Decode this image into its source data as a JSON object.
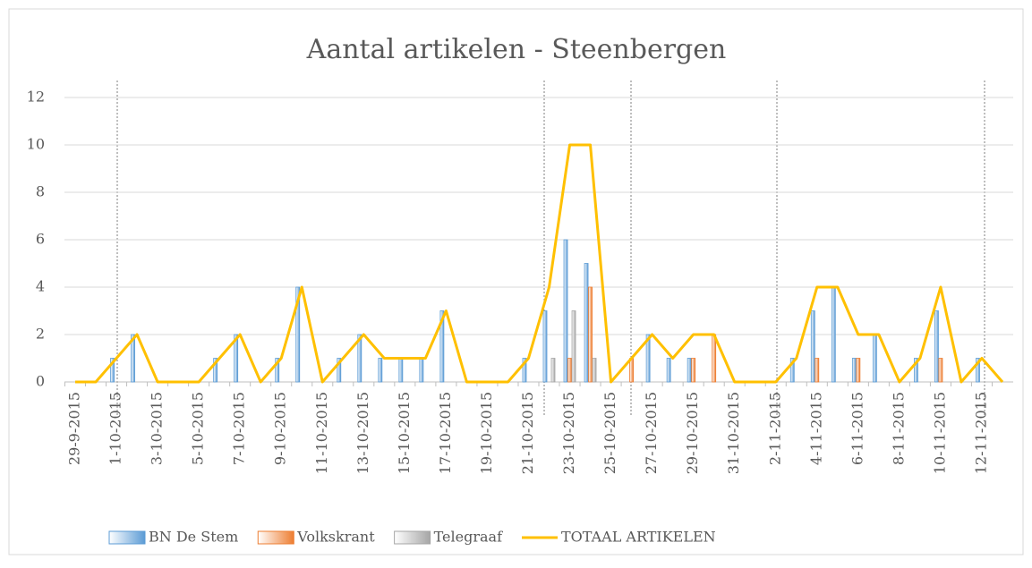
{
  "chart_data": {
    "type": "bar_line",
    "title": "Aantal artikelen - Steenbergen",
    "categories": [
      "29-9-2015",
      null,
      "1-10-2015",
      null,
      "3-10-2015",
      null,
      "5-10-2015",
      null,
      "7-10-2015",
      null,
      "9-10-2015",
      null,
      "11-10-2015",
      null,
      "13-10-2015",
      null,
      "15-10-2015",
      null,
      "17-10-2015",
      null,
      "19-10-2015",
      null,
      "21-10-2015",
      null,
      "23-10-2015",
      null,
      "25-10-2015",
      null,
      "27-10-2015",
      null,
      "29-10-2015",
      null,
      "31-10-2015",
      null,
      "2-11-2015",
      null,
      "4-11-2015",
      null,
      "6-11-2015",
      null,
      "8-11-2015",
      null,
      "10-11-2015",
      null,
      "12-11-2015",
      null
    ],
    "series": [
      {
        "name": "BN De Stem",
        "color": "#5b9bd5",
        "values": [
          0,
          0,
          1,
          2,
          0,
          0,
          0,
          1,
          2,
          0,
          1,
          4,
          0,
          1,
          2,
          1,
          1,
          1,
          3,
          0,
          0,
          0,
          1,
          3,
          6,
          5,
          0,
          0,
          2,
          1,
          1,
          0,
          0,
          0,
          0,
          1,
          3,
          4,
          1,
          2,
          0,
          1,
          3,
          0,
          1,
          0
        ]
      },
      {
        "name": "Volkskrant",
        "color": "#ed7d31",
        "values": [
          0,
          0,
          0,
          0,
          0,
          0,
          0,
          0,
          0,
          0,
          0,
          0,
          0,
          0,
          0,
          0,
          0,
          0,
          0,
          0,
          0,
          0,
          0,
          0,
          1,
          4,
          0,
          1,
          0,
          0,
          1,
          2,
          0,
          0,
          0,
          0,
          1,
          0,
          1,
          0,
          0,
          0,
          1,
          0,
          0,
          0
        ]
      },
      {
        "name": "Telegraaf",
        "color": "#a5a5a5",
        "values": [
          0,
          0,
          0,
          0,
          0,
          0,
          0,
          0,
          0,
          0,
          0,
          0,
          0,
          0,
          0,
          0,
          0,
          0,
          0,
          0,
          0,
          0,
          0,
          1,
          3,
          1,
          0,
          0,
          0,
          0,
          0,
          0,
          0,
          0,
          0,
          0,
          0,
          0,
          0,
          0,
          0,
          0,
          0,
          0,
          0,
          0
        ]
      },
      {
        "name": "TOTAAL ARTIKELEN",
        "color": "#ffc000",
        "line": true,
        "values": [
          0,
          0,
          1,
          2,
          0,
          0,
          0,
          1,
          2,
          0,
          1,
          4,
          0,
          1,
          2,
          1,
          1,
          1,
          3,
          0,
          0,
          0,
          1,
          4,
          10,
          10,
          0,
          1,
          2,
          1,
          2,
          2,
          0,
          0,
          0,
          1,
          4,
          4,
          2,
          2,
          0,
          1,
          4,
          0,
          1,
          0
        ]
      }
    ],
    "ylim": [
      0,
      12
    ],
    "yticks": [
      0,
      2,
      4,
      6,
      8,
      10,
      12
    ],
    "grid": true,
    "legend": "bottom"
  }
}
